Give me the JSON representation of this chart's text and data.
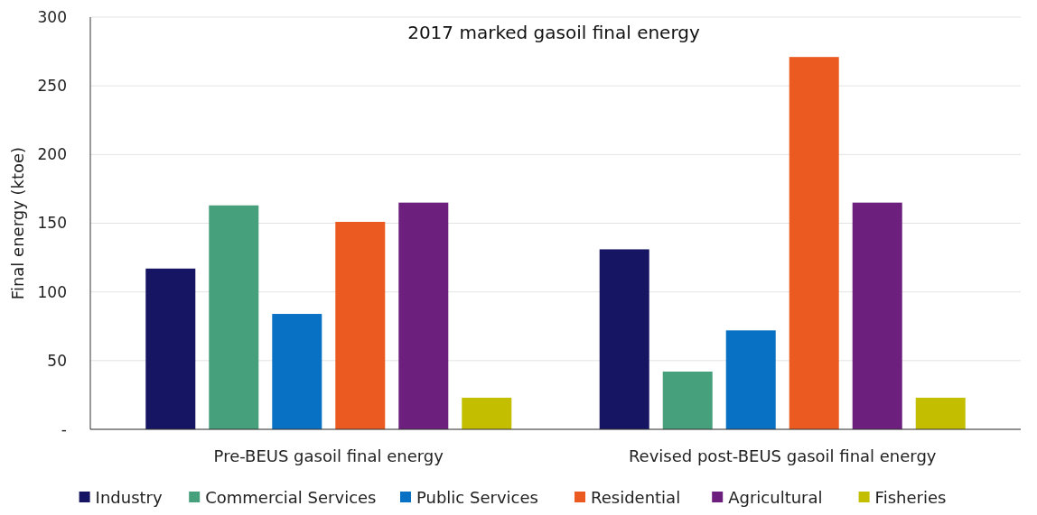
{
  "chart_data": {
    "type": "bar",
    "title": "2017 marked gasoil final energy",
    "ylabel": "Final energy (ktoe)",
    "categories": [
      "Pre-BEUS gasoil final energy",
      "Revised post-BEUS gasoil final energy"
    ],
    "series": [
      {
        "name": "Industry",
        "color": "#161563",
        "values": [
          117,
          131
        ]
      },
      {
        "name": "Commercial Services",
        "color": "#46a07c",
        "values": [
          163,
          42
        ]
      },
      {
        "name": "Public Services",
        "color": "#0971c4",
        "values": [
          84,
          72
        ]
      },
      {
        "name": "Residential",
        "color": "#eb5a20",
        "values": [
          151,
          271
        ]
      },
      {
        "name": "Agricultural",
        "color": "#6c1f7d",
        "values": [
          165,
          165
        ]
      },
      {
        "name": "Fisheries",
        "color": "#c3bf00",
        "values": [
          23,
          23
        ]
      }
    ],
    "ylim": [
      0,
      300
    ],
    "yticks": [
      {
        "value": 0,
        "label": "-"
      },
      50,
      100,
      150,
      200,
      250,
      300
    ],
    "grid": "y",
    "legend": "bottom"
  }
}
